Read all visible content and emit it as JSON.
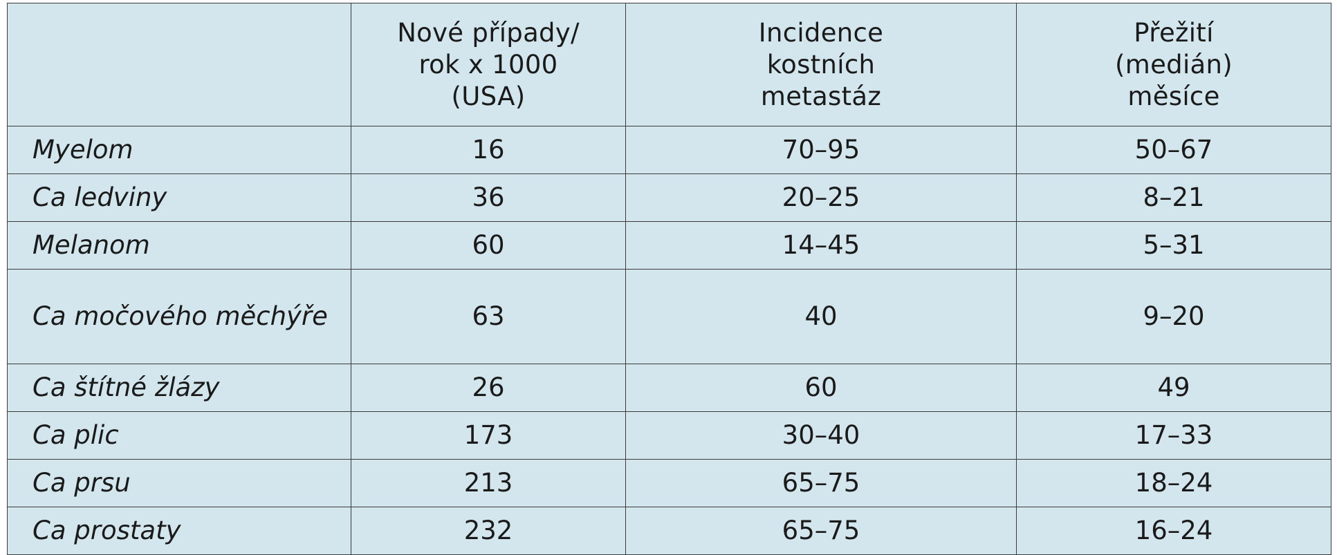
{
  "table": {
    "headers": [
      "",
      "Nové případy/\nrok x 1000\n(USA)",
      "Incidence\nkostních\nmetastáz",
      "Přežití\n(medián)\nměsíce"
    ],
    "rows": [
      [
        "Myelom",
        "16",
        "70–95",
        "50–67"
      ],
      [
        "Ca ledviny",
        "36",
        "20–25",
        "8–21"
      ],
      [
        "Melanom",
        "60",
        "14–45",
        "5–31"
      ],
      [
        "Ca močového měchýře",
        "63",
        "40",
        "9–20"
      ],
      [
        "Ca štítné žlázy",
        "26",
        "60",
        "49"
      ],
      [
        "Ca plic",
        "173",
        "30–40",
        "17–33"
      ],
      [
        "Ca prsu",
        "213",
        "65–75",
        "18–24"
      ],
      [
        "Ca prostaty",
        "232",
        "65–75",
        "16–24"
      ]
    ]
  },
  "colors": {
    "cell_background": "#d3e6ee",
    "border": "#3a3a3a",
    "text": "#1a1a1a"
  }
}
